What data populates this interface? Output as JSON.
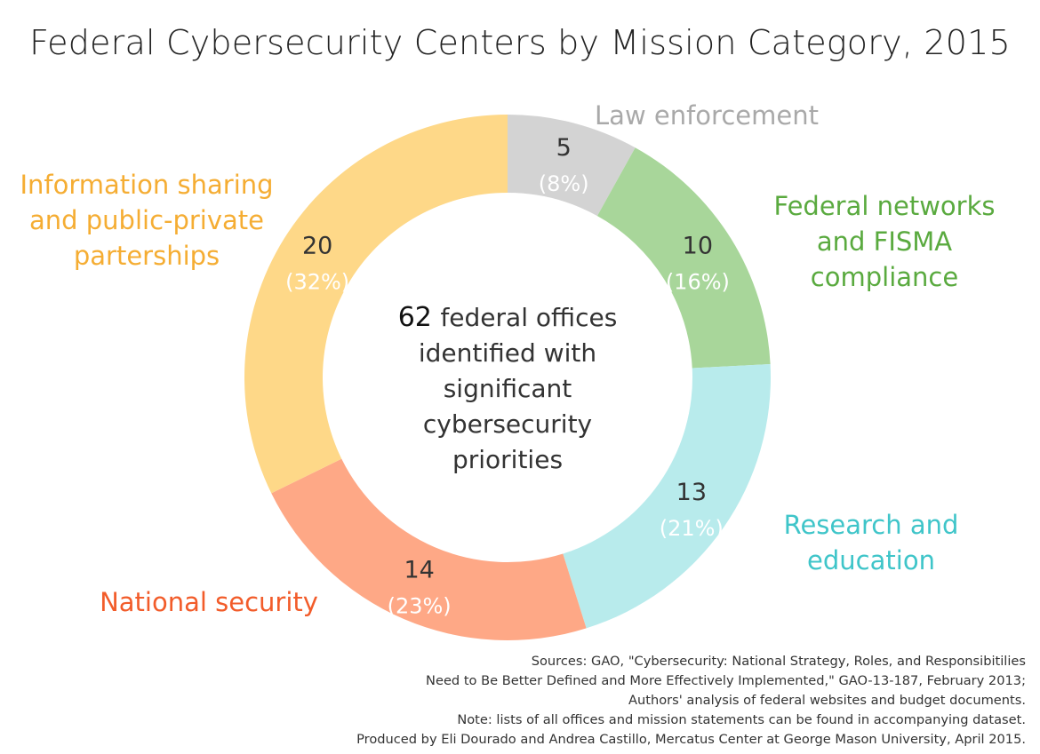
{
  "title": "Federal Cybersecurity Centers by Mission Category, 2015",
  "chart_data": {
    "type": "pie",
    "donut": true,
    "total": 62,
    "slices": [
      {
        "name": "Law enforcement",
        "value": 5,
        "percent_label": "(8%)",
        "color": "#d3d3d3",
        "label_color": "#a9a9a9",
        "value_color": "#333333",
        "pct_color": "#ffffff"
      },
      {
        "name": "Federal networks and FISMA compliance",
        "value": 10,
        "percent_label": "(16%)",
        "color": "#a8d69a",
        "label_color": "#5aaa3f",
        "value_color": "#333333",
        "pct_color": "#ffffff"
      },
      {
        "name": "Research and education",
        "value": 13,
        "percent_label": "(21%)",
        "color": "#b8ebec",
        "label_color": "#3fc5c9",
        "value_color": "#333333",
        "pct_color": "#ffffff"
      },
      {
        "name": "National security",
        "value": 14,
        "percent_label": "(23%)",
        "color": "#fea886",
        "label_color": "#f25c2a",
        "value_color": "#333333",
        "pct_color": "#ffffff"
      },
      {
        "name": "Information sharing and public-private parterships",
        "value": 20,
        "percent_label": "(32%)",
        "color": "#fed888",
        "label_color": "#f5ad33",
        "value_color": "#333333",
        "pct_color": "#ffffff"
      }
    ],
    "center_text": {
      "number": "62",
      "lines": [
        "federal offices",
        "identified with",
        "significant",
        "cybersecurity",
        "priorities"
      ]
    }
  },
  "outer_labels": [
    {
      "lines": [
        "Law enforcement"
      ],
      "color": "#a9a9a9"
    },
    {
      "lines": [
        "Federal networks",
        "and FISMA",
        "compliance"
      ],
      "color": "#5aaa3f"
    },
    {
      "lines": [
        "Research and",
        "education"
      ],
      "color": "#3fc5c9"
    },
    {
      "lines": [
        "National security"
      ],
      "color": "#f25c2a"
    },
    {
      "lines": [
        "Information sharing",
        "and public-private",
        "parterships"
      ],
      "color": "#f5ad33"
    }
  ],
  "sources": [
    "Sources: GAO, \"Cybersecurity: National Strategy, Roles, and Responsibitilies",
    "Need to Be Better Defined and More Effectively Implemented,\" GAO-13-187, February 2013;",
    "Authors' analysis of federal websites and budget documents.",
    "Note: lists of all offices and mission statements can be found in accompanying dataset.",
    "Produced by Eli Dourado and Andrea Castillo, Mercatus Center at George Mason University, April 2015."
  ]
}
